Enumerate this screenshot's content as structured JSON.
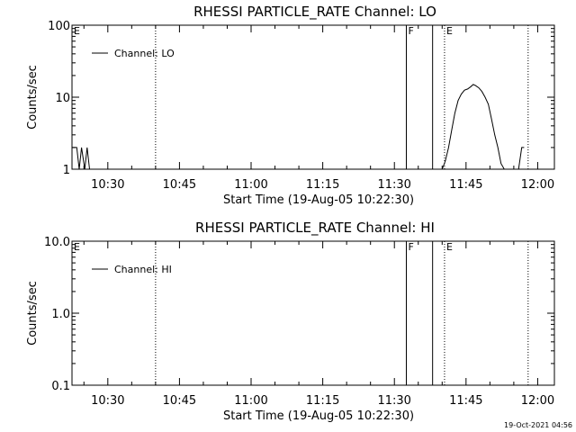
{
  "chart_data": [
    {
      "type": "line",
      "title": "RHESSI PARTICLE_RATE Channel: LO",
      "xlabel": "Start Time (19-Aug-05 10:22:30)",
      "ylabel": "Counts/sec",
      "yscale": "log",
      "xlim": [
        "10:22:30",
        "12:03:30"
      ],
      "ylim": [
        1,
        100
      ],
      "x_ticks": [
        "10:30",
        "10:45",
        "11:00",
        "11:15",
        "11:30",
        "11:45",
        "12:00"
      ],
      "y_ticks": [
        "1",
        "10",
        "100"
      ],
      "grid": false,
      "legend_position": "top-left",
      "series": [
        {
          "name": "Channel: LO",
          "color": "#000000",
          "points": [
            [
              "10:22:30",
              2
            ],
            [
              "10:23:30",
              2
            ],
            [
              "10:24:00",
              1
            ],
            [
              "10:24:30",
              2
            ],
            [
              "10:25:10",
              1
            ],
            [
              "10:25:40",
              2
            ],
            [
              "10:26:10",
              1
            ],
            [
              "11:40:00",
              1
            ],
            [
              "11:40:40",
              1.3
            ],
            [
              "11:41:20",
              2
            ],
            [
              "11:42:00",
              3.5
            ],
            [
              "11:42:40",
              6
            ],
            [
              "11:43:20",
              9
            ],
            [
              "11:44:00",
              11
            ],
            [
              "11:44:40",
              12.5
            ],
            [
              "11:45:20",
              13
            ],
            [
              "11:46:00",
              14
            ],
            [
              "11:46:30",
              15
            ],
            [
              "11:47:00",
              14.5
            ],
            [
              "11:47:40",
              13.5
            ],
            [
              "11:48:20",
              12
            ],
            [
              "11:49:00",
              10
            ],
            [
              "11:49:40",
              8
            ],
            [
              "11:50:20",
              5
            ],
            [
              "11:51:00",
              3
            ],
            [
              "11:51:40",
              2
            ],
            [
              "11:52:20",
              1.2
            ],
            [
              "11:53:00",
              1
            ],
            [
              "11:56:00",
              1
            ],
            [
              "11:56:40",
              2
            ],
            [
              "11:57:10",
              2
            ]
          ]
        }
      ],
      "annotations": [
        {
          "label": "E",
          "time": "10:22:30",
          "style": "none"
        },
        {
          "label": "",
          "time": "10:40:00",
          "style": "dotted"
        },
        {
          "label": "F",
          "time": "11:32:30",
          "style": "solid"
        },
        {
          "label": "",
          "time": "11:38:00",
          "style": "solid"
        },
        {
          "label": "E",
          "time": "11:40:30",
          "style": "dotted"
        },
        {
          "label": "",
          "time": "11:58:00",
          "style": "dotted"
        }
      ]
    },
    {
      "type": "line",
      "title": "RHESSI PARTICLE_RATE Channel: HI",
      "xlabel": "Start Time (19-Aug-05 10:22:30)",
      "ylabel": "Counts/sec",
      "yscale": "log",
      "xlim": [
        "10:22:30",
        "12:03:30"
      ],
      "ylim": [
        0.1,
        10
      ],
      "x_ticks": [
        "10:30",
        "10:45",
        "11:00",
        "11:15",
        "11:30",
        "11:45",
        "12:00"
      ],
      "y_ticks": [
        "0.1",
        "1.0",
        "10.0"
      ],
      "grid": false,
      "legend_position": "top-left",
      "series": [
        {
          "name": "Channel: HI",
          "color": "#000000",
          "points": []
        }
      ],
      "annotations": [
        {
          "label": "E",
          "time": "10:22:30",
          "style": "none"
        },
        {
          "label": "",
          "time": "10:40:00",
          "style": "dotted"
        },
        {
          "label": "F",
          "time": "11:32:30",
          "style": "solid"
        },
        {
          "label": "",
          "time": "11:38:00",
          "style": "solid"
        },
        {
          "label": "E",
          "time": "11:40:30",
          "style": "dotted"
        },
        {
          "label": "",
          "time": "11:58:00",
          "style": "dotted"
        }
      ]
    }
  ],
  "footer": {
    "timestamp": "19-Oct-2021 04:56"
  }
}
